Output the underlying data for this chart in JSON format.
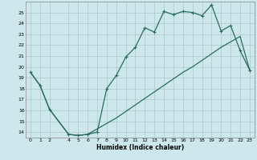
{
  "xlabel": "Humidex (Indice chaleur)",
  "ylabel": "",
  "bg_color": "#cce8ed",
  "grid_color": "#adc8cc",
  "line_color": "#2d6b5e",
  "xlim": [
    -0.5,
    23.5
  ],
  "ylim": [
    13.5,
    26.0
  ],
  "yticks": [
    14,
    15,
    16,
    17,
    18,
    19,
    20,
    21,
    22,
    23,
    24,
    25
  ],
  "xticks": [
    0,
    1,
    2,
    4,
    5,
    6,
    7,
    8,
    9,
    10,
    11,
    12,
    13,
    14,
    15,
    16,
    17,
    18,
    19,
    20,
    21,
    22,
    23
  ],
  "line1_x": [
    0,
    1,
    2,
    4,
    5,
    6,
    7,
    8,
    9,
    10,
    11,
    12,
    13,
    14,
    15,
    16,
    17,
    18,
    19,
    20,
    21,
    22,
    23
  ],
  "line1_y": [
    19.5,
    18.3,
    16.1,
    13.8,
    13.7,
    13.8,
    14.0,
    18.0,
    19.2,
    20.9,
    21.8,
    23.6,
    23.2,
    25.1,
    24.8,
    25.1,
    25.0,
    24.7,
    25.7,
    23.3,
    23.8,
    21.5,
    19.7
  ],
  "line2_x": [
    0,
    1,
    2,
    4,
    5,
    6,
    7,
    8,
    9,
    10,
    11,
    12,
    13,
    14,
    15,
    16,
    17,
    18,
    19,
    20,
    21,
    22,
    23
  ],
  "line2_y": [
    19.5,
    18.3,
    16.1,
    13.8,
    13.7,
    13.8,
    14.3,
    14.8,
    15.3,
    15.9,
    16.5,
    17.1,
    17.7,
    18.3,
    18.9,
    19.5,
    20.0,
    20.6,
    21.2,
    21.8,
    22.3,
    22.8,
    19.7
  ]
}
